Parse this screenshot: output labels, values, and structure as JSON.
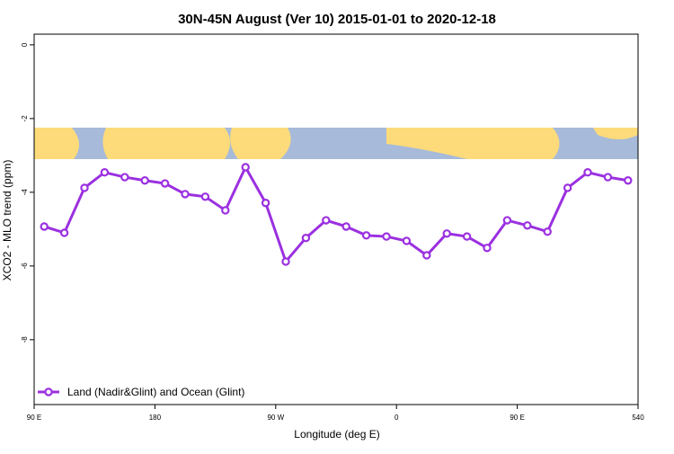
{
  "chart_data": {
    "type": "line",
    "title": "30N-45N August (Ver 10)   2015-01-01 to 2020-12-18",
    "x_label": "Longitude (deg E)",
    "y_label": "XCO2 - MLO trend (ppm)",
    "x": [
      97.5,
      112.5,
      127.5,
      142.5,
      157.5,
      172.5,
      187.5,
      202.5,
      217.5,
      232.5,
      247.5,
      262.5,
      277.5,
      292.5,
      307.5,
      322.5,
      337.5,
      352.5,
      367.5,
      382.5,
      397.5,
      412.5,
      427.5,
      442.5,
      457.5,
      472.5,
      487.5,
      502.5,
      517.5,
      532.5
    ],
    "series": [
      {
        "name": "Land (Nadir&Glint) and Ocean (Glint)",
        "color": "#9b30e0",
        "values": [
          -4.93,
          -5.1,
          -3.88,
          -3.46,
          -3.59,
          -3.68,
          -3.76,
          -4.05,
          -4.12,
          -4.49,
          -3.32,
          -4.29,
          -5.88,
          -5.24,
          -4.76,
          -4.93,
          -5.17,
          -5.2,
          -5.32,
          -5.71,
          -5.12,
          -5.2,
          -5.51,
          -4.76,
          -4.9,
          -5.07,
          -3.88,
          -3.46,
          -3.59,
          -3.68
        ]
      }
    ],
    "xlim": [
      90,
      540
    ],
    "xticks": [
      {
        "value": 90,
        "label": "90 E"
      },
      180,
      {
        "value": 270,
        "label": "90 W"
      },
      {
        "value": 360,
        "label": "0"
      },
      {
        "value": 450,
        "label": "90 E"
      },
      540
    ],
    "ylim": [
      -9.76,
      0.29
    ],
    "yticks": [
      0,
      -2,
      -4,
      -6,
      -8
    ],
    "legend": "bottom-left"
  }
}
